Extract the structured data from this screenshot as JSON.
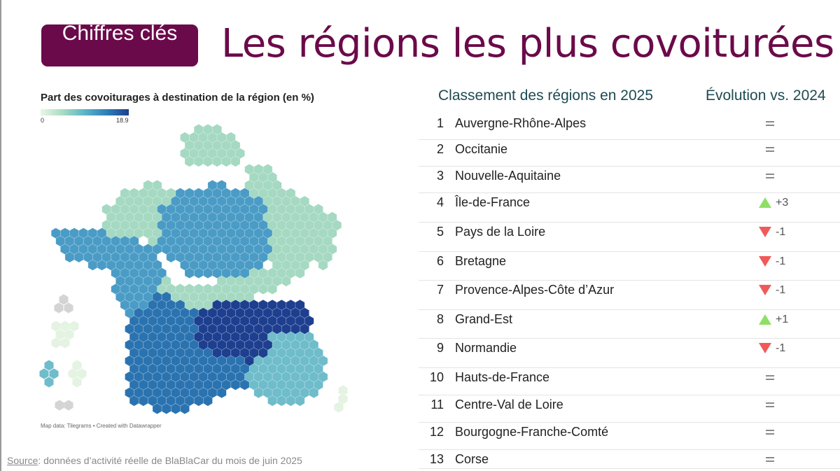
{
  "badge": {
    "text": "Chiffres clés"
  },
  "title": "Les régions les plus covoiturées",
  "map": {
    "title": "Part des covoiturages à destination de la région (en %)",
    "legend_min": "0",
    "legend_max": "18.9",
    "credit": "Map data: Tilegrams • Created with Datawrapper",
    "colors": {
      "very_light": "#e4f3e2",
      "light": "#a5d9c2",
      "mid_light": "#6fbccb",
      "mid": "#4a9cc6",
      "mid_dark": "#2b73b0",
      "dark": "#1e3f8f",
      "grey": "#d4d4d4"
    }
  },
  "source": {
    "label": "Source",
    "text": ": données d’activité réelle de BlaBlaCar du mois de juin 2025"
  },
  "ranking": {
    "header_left": "Classement des régions en 2025",
    "header_right": "Évolution vs. 2024",
    "rows": [
      {
        "rank": "1",
        "name": "Auvergne-Rhône-Alpes",
        "trend": "equal",
        "change": ""
      },
      {
        "rank": "2",
        "name": "Occitanie",
        "trend": "equal",
        "change": ""
      },
      {
        "rank": "3",
        "name": "Nouvelle-Aquitaine",
        "trend": "equal",
        "change": ""
      },
      {
        "rank": "4",
        "name": "Île-de-France",
        "trend": "up",
        "change": "+3"
      },
      {
        "rank": "5",
        "name": "Pays de la Loire",
        "trend": "down",
        "change": "-1"
      },
      {
        "rank": "6",
        "name": "Bretagne",
        "trend": "down",
        "change": "-1"
      },
      {
        "rank": "7",
        "name": "Provence-Alpes-Côte d’Azur",
        "trend": "down",
        "change": "-1"
      },
      {
        "rank": "8",
        "name": "Grand-Est",
        "trend": "up",
        "change": "+1"
      },
      {
        "rank": "9",
        "name": "Normandie",
        "trend": "down",
        "change": "-1"
      },
      {
        "rank": "10",
        "name": "Hauts-de-France",
        "trend": "equal",
        "change": ""
      },
      {
        "rank": "11",
        "name": "Centre-Val de Loire",
        "trend": "equal",
        "change": ""
      },
      {
        "rank": "12",
        "name": "Bourgogne-Franche-Comté",
        "trend": "equal",
        "change": ""
      },
      {
        "rank": "13",
        "name": "Corse",
        "trend": "equal",
        "change": ""
      }
    ]
  }
}
